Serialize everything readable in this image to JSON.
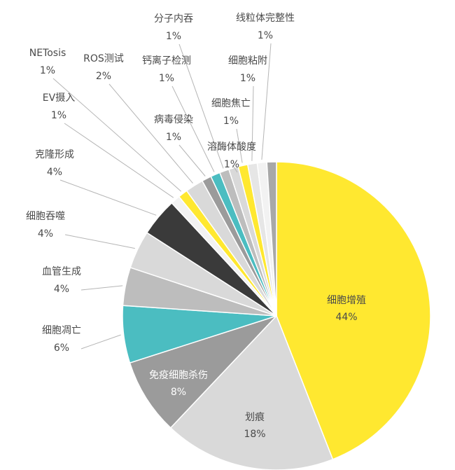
{
  "chart_data": {
    "type": "pie",
    "title": "",
    "start": "12 o'clock",
    "direction": "clockwise",
    "slices": [
      {
        "label": "细胞增殖",
        "value": 44,
        "value_label": "44%",
        "color": "#ffe830",
        "label_color": "#4a4a4a"
      },
      {
        "label": "划痕",
        "value": 18,
        "value_label": "18%",
        "color": "#d9d9d9",
        "label_color": "#4a4a4a"
      },
      {
        "label": "免疫细胞杀伤",
        "value": 8,
        "value_label": "8%",
        "color": "#9b9b9b",
        "label_color": "#ffffff"
      },
      {
        "label": "细胞凋亡",
        "value": 6,
        "value_label": "6%",
        "color": "#4bbdc1",
        "label_color": "#4a4a4a"
      },
      {
        "label": "血管生成",
        "value": 4,
        "value_label": "4%",
        "color": "#bdbdbd",
        "label_color": "#4a4a4a"
      },
      {
        "label": "细胞吞噬",
        "value": 4,
        "value_label": "4%",
        "color": "#d9d9d9",
        "label_color": "#4a4a4a"
      },
      {
        "label": "克隆形成",
        "value": 4,
        "value_label": "4%",
        "color": "#3a3a3a",
        "label_color": "#4a4a4a"
      },
      {
        "label": "EV摄入",
        "value": 1,
        "value_label": "1%",
        "color": "#f2f2f2",
        "label_color": "#4a4a4a"
      },
      {
        "label": "NETosis",
        "value": 1,
        "value_label": "1%",
        "color": "#ffe830",
        "label_color": "#4a4a4a"
      },
      {
        "label": "ROS测试",
        "value": 1.9,
        "value_label": "2%",
        "color": "#d9d9d9",
        "label_color": "#4a4a4a"
      },
      {
        "label": "病毒侵染",
        "value": 1,
        "value_label": "1%",
        "color": "#9b9b9b",
        "label_color": "#4a4a4a"
      },
      {
        "label": "钙离子检测",
        "value": 1,
        "value_label": "1%",
        "color": "#4bbdc1",
        "label_color": "#4a4a4a"
      },
      {
        "label": "分子内吞",
        "value": 1,
        "value_label": "1%",
        "color": "#bdbdbd",
        "label_color": "#4a4a4a"
      },
      {
        "label": "溶酶体酸度",
        "value": 1,
        "value_label": "1%",
        "color": "#d9d9d9",
        "label_color": "#4a4a4a"
      },
      {
        "label": "细胞焦亡",
        "value": 1,
        "value_label": "1%",
        "color": "#ffe830",
        "label_color": "#4a4a4a"
      },
      {
        "label": "细胞粘附",
        "value": 1,
        "value_label": "1%",
        "color": "#e6e6e6",
        "label_color": "#4a4a4a"
      },
      {
        "label": "线粒体完整性",
        "value": 1,
        "value_label": "1%",
        "color": "#f2f2f2",
        "label_color": "#4a4a4a"
      },
      {
        "label": "",
        "value": 1,
        "value_label": "",
        "color": "#a8a8a8",
        "label_color": "#4a4a4a"
      }
    ]
  }
}
